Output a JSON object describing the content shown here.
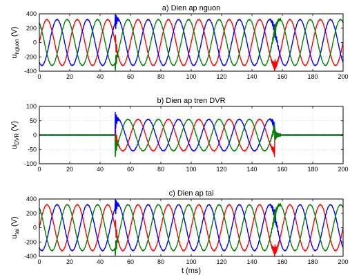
{
  "chart_data": [
    {
      "type": "line",
      "title": "a) Dien ap nguon",
      "ylabel": {
        "base": "u",
        "sub": "nguon",
        "unit": " (V)"
      },
      "xlabel": "",
      "xlim": [
        0,
        200
      ],
      "ylim": [
        -400,
        400
      ],
      "xticks": [
        0,
        20,
        40,
        60,
        80,
        100,
        120,
        140,
        160,
        180,
        200
      ],
      "yticks": [
        400,
        200,
        0,
        -200,
        -400
      ],
      "grid": true,
      "x_unit": "ms",
      "series": [
        {
          "color": "#ff0000",
          "amplitude_before": 320,
          "amplitude_sag": 320,
          "amplitude_after": 320,
          "phase_deg": 0,
          "frequency_hz": 50
        },
        {
          "color": "#0000ff",
          "amplitude_before": 320,
          "amplitude_sag": 320,
          "amplitude_after": 320,
          "phase_deg": -120,
          "frequency_hz": 50
        },
        {
          "color": "#008000",
          "amplitude_before": 320,
          "amplitude_sag": 320,
          "amplitude_after": 320,
          "phase_deg": 120,
          "frequency_hz": 50
        }
      ],
      "events": {
        "sag_start_ms": 50,
        "sag_end_ms": 155
      }
    },
    {
      "type": "line",
      "title": "b) Dien ap tren DVR",
      "ylabel": {
        "base": "u",
        "sub": "DVR",
        "unit": " (V)"
      },
      "xlabel": "",
      "xlim": [
        0,
        200
      ],
      "ylim": [
        -100,
        100
      ],
      "xticks": [
        0,
        20,
        40,
        60,
        80,
        100,
        120,
        140,
        160,
        180,
        200
      ],
      "yticks": [
        100,
        50,
        0,
        -50,
        -100
      ],
      "grid": true,
      "x_unit": "ms",
      "series": [
        {
          "color": "#ff0000",
          "amplitude_before": 0,
          "amplitude_sag": 55,
          "amplitude_after": 0,
          "phase_deg": 0,
          "frequency_hz": 50
        },
        {
          "color": "#0000ff",
          "amplitude_before": 0,
          "amplitude_sag": 55,
          "amplitude_after": 0,
          "phase_deg": -120,
          "frequency_hz": 50
        },
        {
          "color": "#008000",
          "amplitude_before": 0,
          "amplitude_sag": 55,
          "amplitude_after": 0,
          "phase_deg": 120,
          "frequency_hz": 50
        }
      ],
      "events": {
        "sag_start_ms": 50,
        "sag_end_ms": 155
      }
    },
    {
      "type": "line",
      "title": "c) Dien ap tai",
      "ylabel": {
        "base": "u",
        "sub": "tai",
        "unit": " (V)"
      },
      "xlabel": "t (ms)",
      "xlim": [
        0,
        200
      ],
      "ylim": [
        -400,
        400
      ],
      "xticks": [
        0,
        20,
        40,
        60,
        80,
        100,
        120,
        140,
        160,
        180,
        200
      ],
      "yticks": [
        400,
        200,
        0,
        -200,
        -400
      ],
      "grid": true,
      "x_unit": "ms",
      "series": [
        {
          "color": "#ff0000",
          "amplitude_before": 320,
          "amplitude_sag": 320,
          "amplitude_after": 320,
          "phase_deg": 0,
          "frequency_hz": 50
        },
        {
          "color": "#0000ff",
          "amplitude_before": 320,
          "amplitude_sag": 320,
          "amplitude_after": 320,
          "phase_deg": -120,
          "frequency_hz": 50
        },
        {
          "color": "#008000",
          "amplitude_before": 320,
          "amplitude_sag": 320,
          "amplitude_after": 320,
          "phase_deg": 120,
          "frequency_hz": 50
        }
      ],
      "events": {
        "sag_start_ms": 50,
        "sag_end_ms": 155
      }
    }
  ]
}
